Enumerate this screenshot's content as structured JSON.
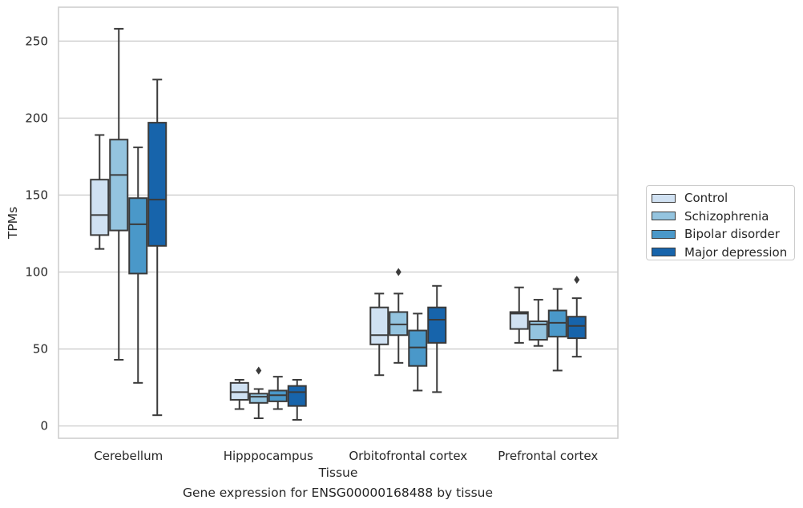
{
  "chart_data": {
    "type": "box",
    "title": "",
    "xlabel": "Tissue",
    "ylabel": "TPMs",
    "ylim": [
      -8,
      272
    ],
    "yticks": [
      0,
      50,
      100,
      150,
      200,
      250
    ],
    "categories": [
      "Cerebellum",
      "Hipppocampus",
      "Orbitofrontal cortex",
      "Prefrontal cortex"
    ],
    "grid": "horizontal",
    "legend_position": "right",
    "series": [
      {
        "name": "Control",
        "color": "#d0e1f2",
        "boxes": [
          {
            "whisker_low": 115,
            "q1": 124,
            "median": 137,
            "q3": 160,
            "whisker_high": 189,
            "outliers": []
          },
          {
            "whisker_low": 11,
            "q1": 17,
            "median": 22,
            "q3": 28,
            "whisker_high": 30,
            "outliers": []
          },
          {
            "whisker_low": 33,
            "q1": 53,
            "median": 59,
            "q3": 77,
            "whisker_high": 86,
            "outliers": []
          },
          {
            "whisker_low": 54,
            "q1": 63,
            "median": 73,
            "q3": 74,
            "whisker_high": 90,
            "outliers": []
          }
        ]
      },
      {
        "name": "Schizophrenia",
        "color": "#94c4df",
        "boxes": [
          {
            "whisker_low": 43,
            "q1": 127,
            "median": 163,
            "q3": 186,
            "whisker_high": 258,
            "outliers": []
          },
          {
            "whisker_low": 5,
            "q1": 15,
            "median": 19,
            "q3": 21,
            "whisker_high": 24,
            "outliers": [
              36
            ]
          },
          {
            "whisker_low": 41,
            "q1": 59,
            "median": 66,
            "q3": 74,
            "whisker_high": 86,
            "outliers": [
              100
            ]
          },
          {
            "whisker_low": 52,
            "q1": 56,
            "median": 66,
            "q3": 68,
            "whisker_high": 82,
            "outliers": []
          }
        ]
      },
      {
        "name": "Bipolar disorder",
        "color": "#4a98c9",
        "boxes": [
          {
            "whisker_low": 28,
            "q1": 99,
            "median": 131,
            "q3": 148,
            "whisker_high": 181,
            "outliers": []
          },
          {
            "whisker_low": 11,
            "q1": 16,
            "median": 20,
            "q3": 23,
            "whisker_high": 32,
            "outliers": []
          },
          {
            "whisker_low": 23,
            "q1": 39,
            "median": 51,
            "q3": 62,
            "whisker_high": 73,
            "outliers": []
          },
          {
            "whisker_low": 36,
            "q1": 58,
            "median": 67,
            "q3": 75,
            "whisker_high": 89,
            "outliers": []
          }
        ]
      },
      {
        "name": "Major depression",
        "color": "#1764ab",
        "boxes": [
          {
            "whisker_low": 7,
            "q1": 117,
            "median": 147,
            "q3": 197,
            "whisker_high": 225,
            "outliers": []
          },
          {
            "whisker_low": 4,
            "q1": 13,
            "median": 22,
            "q3": 26,
            "whisker_high": 30,
            "outliers": []
          },
          {
            "whisker_low": 22,
            "q1": 54,
            "median": 69,
            "q3": 77,
            "whisker_high": 91,
            "outliers": []
          },
          {
            "whisker_low": 45,
            "q1": 57,
            "median": 65,
            "q3": 71,
            "whisker_high": 83,
            "outliers": [
              95
            ]
          }
        ]
      }
    ]
  },
  "caption": "Gene expression for ENSG00000168488 by tissue"
}
